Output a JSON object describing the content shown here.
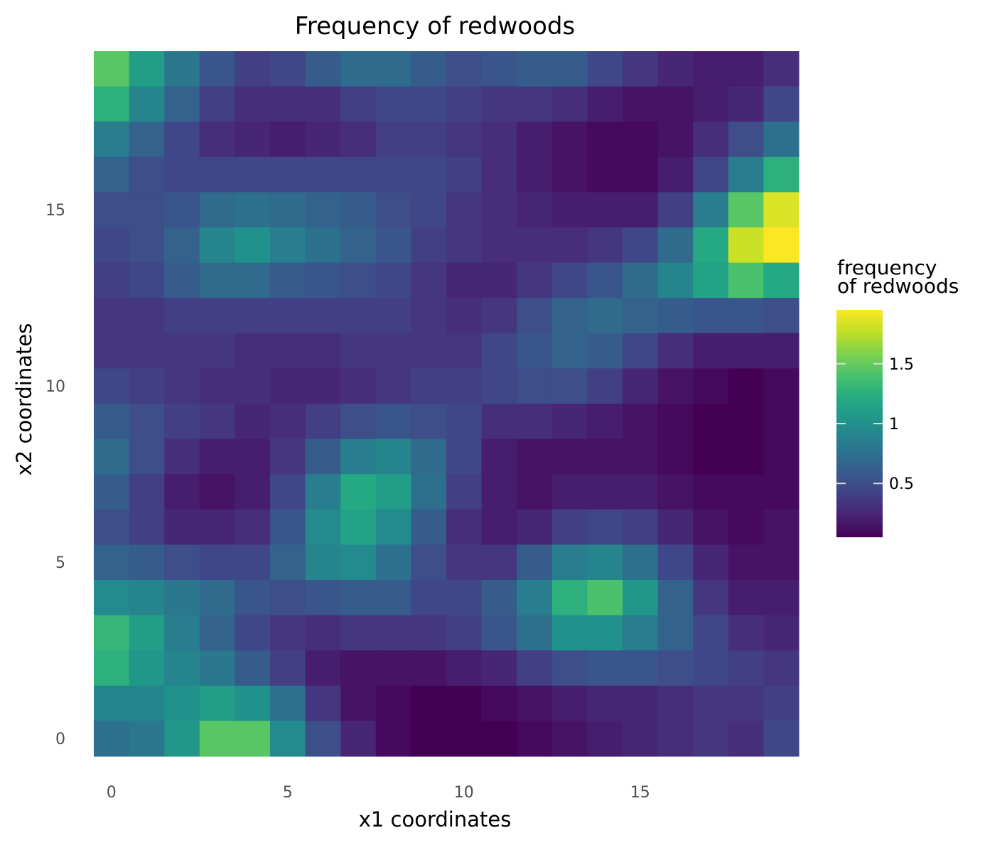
{
  "chart_data": {
    "type": "heatmap",
    "title": "Frequency of redwoods",
    "xlabel": "x1 coordinates",
    "ylabel": "x2 coordinates",
    "x": [
      0,
      1,
      2,
      3,
      4,
      5,
      6,
      7,
      8,
      9,
      10,
      11,
      12,
      13,
      14,
      15,
      16,
      17,
      18,
      19
    ],
    "y": [
      0,
      1,
      2,
      3,
      4,
      5,
      6,
      7,
      8,
      9,
      10,
      11,
      12,
      13,
      14,
      15,
      16,
      17,
      18,
      19
    ],
    "xlim": [
      -0.5,
      19.5
    ],
    "ylim": [
      -0.5,
      19.5
    ],
    "x_ticks": [
      0,
      5,
      10,
      15
    ],
    "x_tick_labels": [
      "0",
      "5",
      "10",
      "15"
    ],
    "y_ticks": [
      0,
      5,
      10,
      15
    ],
    "y_tick_labels": [
      "0",
      "5",
      "10",
      "15"
    ],
    "grid": false,
    "colorscale": "viridis",
    "color_range": [
      0.05,
      1.95
    ],
    "z_row_order": "top-to-bottom",
    "z": [
      [
        1.45,
        1.1,
        0.8,
        0.55,
        0.4,
        0.45,
        0.6,
        0.7,
        0.7,
        0.6,
        0.5,
        0.55,
        0.6,
        0.6,
        0.45,
        0.35,
        0.25,
        0.2,
        0.2,
        0.3
      ],
      [
        1.25,
        0.9,
        0.65,
        0.4,
        0.3,
        0.3,
        0.3,
        0.4,
        0.45,
        0.45,
        0.4,
        0.35,
        0.35,
        0.3,
        0.2,
        0.15,
        0.15,
        0.2,
        0.25,
        0.45
      ],
      [
        0.85,
        0.65,
        0.45,
        0.3,
        0.25,
        0.2,
        0.25,
        0.3,
        0.4,
        0.4,
        0.35,
        0.3,
        0.2,
        0.15,
        0.1,
        0.1,
        0.15,
        0.3,
        0.5,
        0.75
      ],
      [
        0.65,
        0.5,
        0.45,
        0.45,
        0.45,
        0.45,
        0.45,
        0.45,
        0.45,
        0.45,
        0.4,
        0.3,
        0.2,
        0.15,
        0.1,
        0.1,
        0.2,
        0.45,
        0.85,
        1.25
      ],
      [
        0.5,
        0.5,
        0.55,
        0.7,
        0.75,
        0.7,
        0.65,
        0.6,
        0.5,
        0.45,
        0.35,
        0.3,
        0.25,
        0.2,
        0.2,
        0.2,
        0.4,
        0.85,
        1.45,
        1.85
      ],
      [
        0.45,
        0.5,
        0.65,
        0.9,
        1.0,
        0.85,
        0.75,
        0.65,
        0.55,
        0.4,
        0.35,
        0.3,
        0.3,
        0.3,
        0.35,
        0.45,
        0.7,
        1.2,
        1.8,
        1.95
      ],
      [
        0.4,
        0.45,
        0.6,
        0.7,
        0.7,
        0.6,
        0.55,
        0.5,
        0.45,
        0.35,
        0.25,
        0.25,
        0.35,
        0.45,
        0.55,
        0.7,
        0.9,
        1.15,
        1.4,
        1.2
      ],
      [
        0.35,
        0.35,
        0.4,
        0.4,
        0.4,
        0.4,
        0.4,
        0.4,
        0.4,
        0.35,
        0.3,
        0.35,
        0.5,
        0.65,
        0.7,
        0.65,
        0.6,
        0.55,
        0.55,
        0.5
      ],
      [
        0.35,
        0.35,
        0.35,
        0.35,
        0.3,
        0.3,
        0.3,
        0.35,
        0.35,
        0.35,
        0.35,
        0.45,
        0.55,
        0.65,
        0.6,
        0.45,
        0.3,
        0.2,
        0.2,
        0.2
      ],
      [
        0.45,
        0.4,
        0.35,
        0.3,
        0.3,
        0.25,
        0.25,
        0.3,
        0.35,
        0.4,
        0.4,
        0.45,
        0.5,
        0.5,
        0.4,
        0.25,
        0.15,
        0.1,
        0.05,
        0.1
      ],
      [
        0.6,
        0.5,
        0.4,
        0.35,
        0.25,
        0.3,
        0.4,
        0.5,
        0.55,
        0.5,
        0.45,
        0.3,
        0.3,
        0.25,
        0.2,
        0.15,
        0.1,
        0.05,
        0.05,
        0.1
      ],
      [
        0.7,
        0.5,
        0.3,
        0.2,
        0.2,
        0.35,
        0.6,
        0.85,
        0.9,
        0.7,
        0.45,
        0.2,
        0.15,
        0.15,
        0.15,
        0.15,
        0.1,
        0.05,
        0.05,
        0.1
      ],
      [
        0.6,
        0.4,
        0.2,
        0.15,
        0.2,
        0.45,
        0.85,
        1.2,
        1.1,
        0.75,
        0.4,
        0.2,
        0.15,
        0.2,
        0.2,
        0.2,
        0.15,
        0.1,
        0.1,
        0.1
      ],
      [
        0.5,
        0.4,
        0.25,
        0.25,
        0.3,
        0.55,
        0.95,
        1.15,
        0.95,
        0.6,
        0.3,
        0.2,
        0.25,
        0.4,
        0.45,
        0.4,
        0.25,
        0.15,
        0.1,
        0.15
      ],
      [
        0.65,
        0.6,
        0.5,
        0.45,
        0.45,
        0.65,
        0.9,
        0.95,
        0.75,
        0.5,
        0.35,
        0.35,
        0.6,
        0.85,
        0.9,
        0.75,
        0.45,
        0.25,
        0.15,
        0.15
      ],
      [
        0.95,
        0.9,
        0.8,
        0.7,
        0.55,
        0.5,
        0.55,
        0.6,
        0.6,
        0.45,
        0.45,
        0.6,
        0.85,
        1.25,
        1.4,
        1.05,
        0.65,
        0.35,
        0.2,
        0.2
      ],
      [
        1.3,
        1.1,
        0.85,
        0.65,
        0.45,
        0.35,
        0.3,
        0.35,
        0.35,
        0.35,
        0.4,
        0.55,
        0.75,
        1.0,
        1.0,
        0.85,
        0.65,
        0.45,
        0.3,
        0.25
      ],
      [
        1.25,
        1.05,
        0.9,
        0.8,
        0.6,
        0.4,
        0.2,
        0.15,
        0.15,
        0.15,
        0.2,
        0.25,
        0.4,
        0.5,
        0.55,
        0.55,
        0.5,
        0.45,
        0.4,
        0.35
      ],
      [
        0.9,
        0.9,
        1.0,
        1.1,
        1.0,
        0.75,
        0.35,
        0.15,
        0.1,
        0.05,
        0.05,
        0.1,
        0.15,
        0.2,
        0.25,
        0.25,
        0.3,
        0.35,
        0.35,
        0.4
      ],
      [
        0.75,
        0.8,
        1.05,
        1.45,
        1.45,
        0.95,
        0.5,
        0.25,
        0.1,
        0.05,
        0.05,
        0.05,
        0.1,
        0.15,
        0.2,
        0.25,
        0.3,
        0.35,
        0.3,
        0.45
      ]
    ]
  },
  "legend": {
    "title_line1": "frequency",
    "title_line2": "of redwoods",
    "ticks": [
      0.5,
      1.0,
      1.5
    ],
    "tick_labels": [
      "0.5",
      "1",
      "1.5"
    ]
  }
}
